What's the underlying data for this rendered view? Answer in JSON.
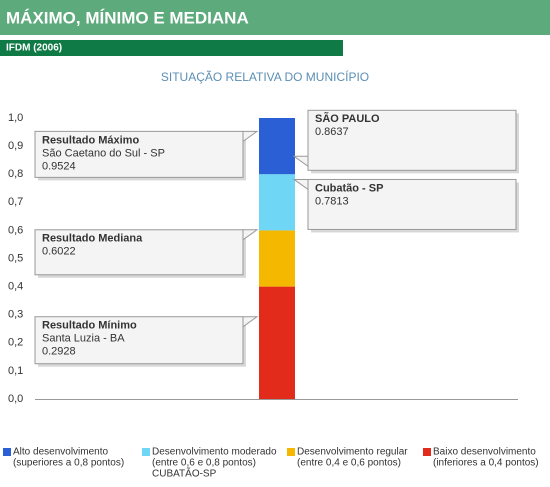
{
  "header": {
    "title": "MÁXIMO, MÍNIMO E MEDIANA",
    "subtitle": "IFDM (2006)"
  },
  "chart_data": {
    "type": "bar",
    "title": "SITUAÇÃO RELATIVA DO MUNICÍPIO",
    "ylim": [
      0,
      1
    ],
    "yticks": [
      {
        "value": 0,
        "label": "0,0"
      },
      {
        "value": 0.1,
        "label": "0,1"
      },
      {
        "value": 0.2,
        "label": "0,2"
      },
      {
        "value": 0.3,
        "label": "0,3"
      },
      {
        "value": 0.4,
        "label": "0,4"
      },
      {
        "value": 0.5,
        "label": "0,5"
      },
      {
        "value": 0.6,
        "label": "0,6"
      },
      {
        "value": 0.7,
        "label": "0,7"
      },
      {
        "value": 0.8,
        "label": "0,8"
      },
      {
        "value": 0.9,
        "label": "0,9"
      },
      {
        "value": 1,
        "label": "1,0"
      }
    ],
    "series": [
      {
        "name": "Alto desenvolvimento",
        "description": "(superiores a 0,8 pontos)",
        "color": "#2a5fd6",
        "values": [
          0.2
        ]
      },
      {
        "name": "Desenvolvimento moderado",
        "description": "(entre 0,6 e 0,8 pontos)",
        "note": "CUBATÃO-SP",
        "color": "#6fd6f6",
        "values": [
          0.2
        ]
      },
      {
        "name": "Desenvolvimento regular",
        "description": "(entre 0,4 e 0,6 pontos)",
        "color": "#f5b800",
        "values": [
          0.2
        ]
      },
      {
        "name": "Baixo desenvolvimento",
        "description": "(inferiores a 0,4 pontos)",
        "color": "#e22b1a",
        "values": [
          0.4
        ]
      }
    ],
    "callouts": [
      {
        "title": "Resultado Máximo",
        "place": "São Caetano do Sul - SP",
        "value": 0.9524
      },
      {
        "title": "Resultado Mediana",
        "value": 0.6022
      },
      {
        "title": "Resultado Mínimo",
        "place": "Santa Luzia - BA",
        "value": 0.2928
      },
      {
        "title": "SÃO PAULO",
        "value": 0.8637
      },
      {
        "title": "Cubatão - SP",
        "value": 0.7813
      }
    ]
  }
}
